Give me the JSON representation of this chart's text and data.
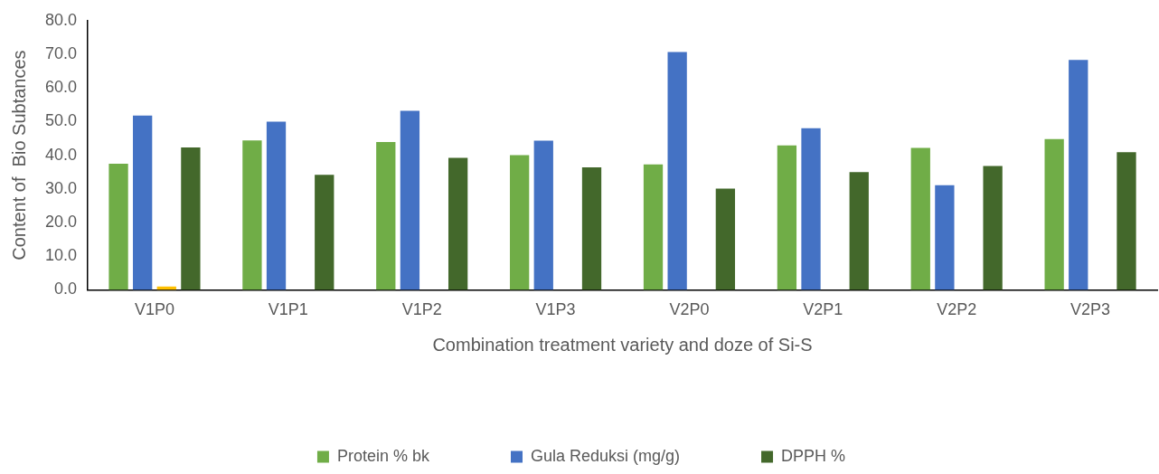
{
  "chart_data": {
    "type": "bar",
    "xlabel": "Combination treatment variety and doze of Si-S",
    "ylabel": "Content of  Bio Subtances",
    "categories": [
      "V1P0",
      "V1P1",
      "V1P2",
      "V1P3",
      "V2P0",
      "V2P1",
      "V2P2",
      "V2P3"
    ],
    "series": [
      {
        "name": "Protein % bk",
        "color": "#70ad47",
        "values": [
          37.5,
          44.4,
          43.9,
          40.0,
          37.3,
          42.9,
          42.2,
          44.8
        ]
      },
      {
        "name": "Gula Reduksi (mg/g)",
        "color": "#4472c4",
        "values": [
          51.8,
          50.0,
          53.2,
          44.3,
          70.7,
          48.0,
          31.1,
          68.3
        ]
      },
      {
        "color": "#ffc000",
        "values": [
          1.0,
          null,
          null,
          null,
          null,
          null,
          null,
          null
        ]
      },
      {
        "name": "DPPH %",
        "color": "#43682b",
        "values": [
          42.3,
          34.2,
          39.2,
          36.4,
          30.1,
          35.0,
          36.8,
          40.9
        ]
      }
    ],
    "ylim": [
      0,
      80
    ],
    "yticks": [
      {
        "value": 0,
        "label": "0.0"
      },
      {
        "value": 10,
        "label": "10.0"
      },
      {
        "value": 20,
        "label": "20.0"
      },
      {
        "value": 30,
        "label": "30.0"
      },
      {
        "value": 40,
        "label": "40.0"
      },
      {
        "value": 50,
        "label": "50.0"
      },
      {
        "value": 60,
        "label": "60.0"
      },
      {
        "value": 70,
        "label": "70.0"
      },
      {
        "value": 80,
        "label": "80.0"
      }
    ],
    "grid": false,
    "legend": "bottom"
  }
}
